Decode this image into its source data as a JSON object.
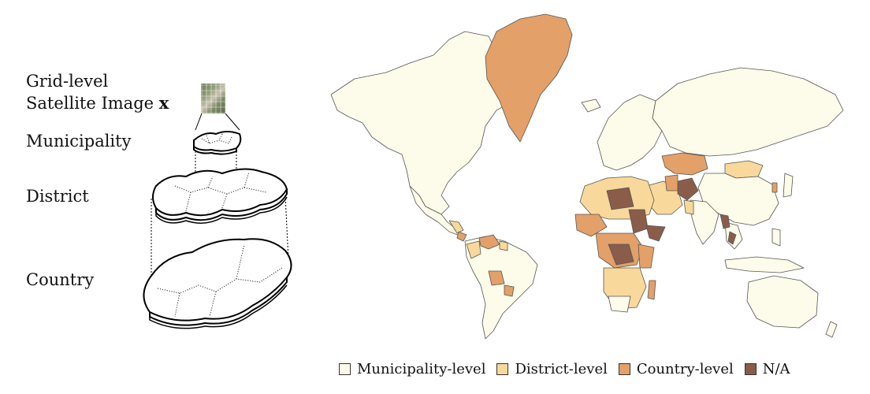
{
  "levels": {
    "grid_line1": "Grid-level",
    "grid_line2": "Satellite Image",
    "grid_var": "x",
    "municipality": "Municipality",
    "district": "District",
    "country": "Country"
  },
  "legend": {
    "items": [
      {
        "label": "Municipality-level",
        "color": "#fdfbe9"
      },
      {
        "label": "District-level",
        "color": "#f8d99b"
      },
      {
        "label": "Country-level",
        "color": "#e3a068"
      },
      {
        "label": "N/A",
        "color": "#8a5d4a"
      }
    ]
  },
  "colors": {
    "municipality": "#fdfbe9",
    "district": "#f8d99b",
    "country": "#e3a068",
    "na": "#8a5d4a",
    "border": "#555555"
  }
}
